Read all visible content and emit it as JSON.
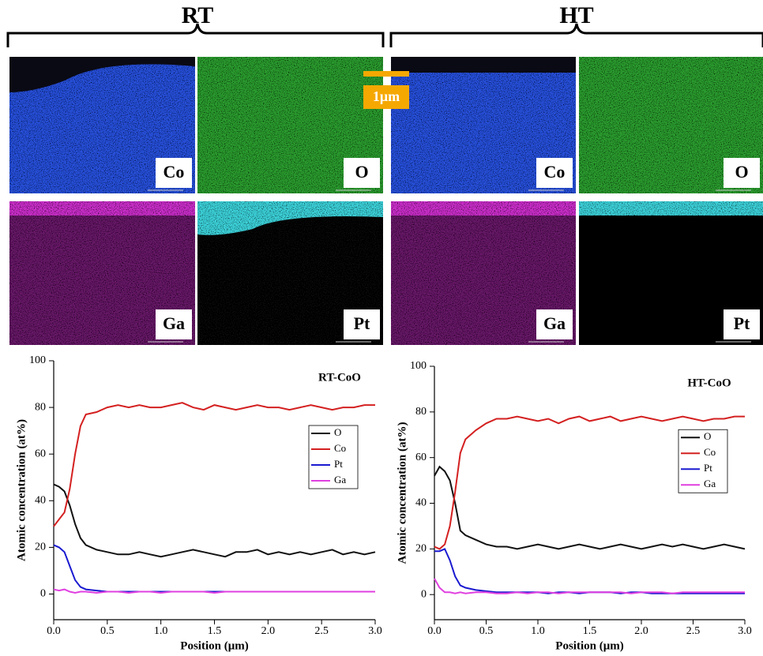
{
  "header": {
    "left": "RT",
    "right": "HT"
  },
  "scale_bar": "1μm",
  "maps": [
    {
      "label": "Co"
    },
    {
      "label": "O"
    },
    {
      "label": "Ga"
    },
    {
      "label": "Pt"
    },
    {
      "label": "Co"
    },
    {
      "label": "O"
    },
    {
      "label": "Ga"
    },
    {
      "label": "Pt"
    }
  ],
  "chart_data": [
    {
      "type": "line",
      "title": "RT-CoO",
      "xlabel": "Position (μm)",
      "ylabel": "Atomic concentration (at%)",
      "x": [
        0,
        0.05,
        0.1,
        0.15,
        0.2,
        0.25,
        0.3,
        0.4,
        0.5,
        0.6,
        0.7,
        0.8,
        0.9,
        1.0,
        1.1,
        1.2,
        1.3,
        1.4,
        1.5,
        1.6,
        1.7,
        1.8,
        1.9,
        2.0,
        2.1,
        2.2,
        2.3,
        2.4,
        2.5,
        2.6,
        2.7,
        2.8,
        2.9,
        3.0
      ],
      "series": [
        {
          "name": "O",
          "color": "#111111",
          "values": [
            47,
            46,
            44,
            38,
            30,
            24,
            21,
            19,
            18,
            17,
            17,
            18,
            17,
            16,
            17,
            18,
            19,
            18,
            17,
            16,
            18,
            18,
            19,
            17,
            18,
            17,
            18,
            17,
            18,
            19,
            17,
            18,
            17,
            18
          ]
        },
        {
          "name": "Co",
          "color": "#d42020",
          "values": [
            29,
            32,
            35,
            45,
            60,
            72,
            77,
            78,
            80,
            81,
            80,
            81,
            80,
            80,
            81,
            82,
            80,
            79,
            81,
            80,
            79,
            80,
            81,
            80,
            80,
            79,
            80,
            81,
            80,
            79,
            80,
            80,
            81,
            81
          ]
        },
        {
          "name": "Pt",
          "color": "#1a1ad0",
          "values": [
            21,
            20,
            18,
            12,
            6,
            3,
            2,
            1.5,
            1,
            1,
            1,
            1,
            1,
            1,
            1,
            1,
            1,
            1,
            1,
            1,
            1,
            1,
            1,
            1,
            1,
            1,
            1,
            1,
            1,
            1,
            1,
            1,
            1,
            1
          ]
        },
        {
          "name": "Ga",
          "color": "#e040e0",
          "values": [
            2,
            1.5,
            2,
            1,
            0.5,
            1,
            1,
            0.5,
            1,
            1,
            0.5,
            1,
            1,
            0.5,
            1,
            1,
            1,
            1,
            0.5,
            1,
            1,
            1,
            1,
            1,
            1,
            1,
            1,
            1,
            1,
            1,
            1,
            1,
            1,
            1
          ]
        }
      ],
      "xlim": [
        0,
        3
      ],
      "ylim": [
        -11,
        100
      ],
      "xticks": [
        {
          "value": 0,
          "label": "0.0"
        },
        0.5,
        {
          "value": 1,
          "label": "1.0"
        },
        1.5,
        {
          "value": 2,
          "label": "2.0"
        },
        2.5,
        {
          "value": 3,
          "label": "3.0"
        }
      ],
      "yticks": [
        0,
        20,
        40,
        60,
        80,
        100
      ],
      "legend": "center right"
    },
    {
      "type": "line",
      "title": "HT-CoO",
      "xlabel": "Position (μm)",
      "ylabel": "Atomic concentration (at%)",
      "x": [
        0,
        0.05,
        0.1,
        0.15,
        0.2,
        0.25,
        0.3,
        0.4,
        0.5,
        0.6,
        0.7,
        0.8,
        0.9,
        1.0,
        1.1,
        1.2,
        1.3,
        1.4,
        1.5,
        1.6,
        1.7,
        1.8,
        1.9,
        2.0,
        2.1,
        2.2,
        2.3,
        2.4,
        2.5,
        2.6,
        2.7,
        2.8,
        2.9,
        3.0
      ],
      "series": [
        {
          "name": "O",
          "color": "#111111",
          "values": [
            52,
            56,
            54,
            50,
            40,
            28,
            26,
            24,
            22,
            21,
            21,
            20,
            21,
            22,
            21,
            20,
            21,
            22,
            21,
            20,
            21,
            22,
            21,
            20,
            21,
            22,
            21,
            22,
            21,
            20,
            21,
            22,
            21,
            20
          ]
        },
        {
          "name": "Co",
          "color": "#d42020",
          "values": [
            21,
            20,
            22,
            30,
            45,
            62,
            68,
            72,
            75,
            77,
            77,
            78,
            77,
            76,
            77,
            75,
            77,
            78,
            76,
            77,
            78,
            76,
            77,
            78,
            77,
            76,
            77,
            78,
            77,
            76,
            77,
            77,
            78,
            78
          ]
        },
        {
          "name": "Pt",
          "color": "#1a1ad0",
          "values": [
            19,
            19,
            20,
            15,
            8,
            4,
            3,
            2,
            1.5,
            1,
            1,
            1,
            1,
            1,
            0.5,
            1,
            1,
            0.5,
            1,
            1,
            1,
            0.5,
            1,
            1,
            0.5,
            0.5,
            0.5,
            0.5,
            0.5,
            0.5,
            0.5,
            0.5,
            0.5,
            0.5
          ]
        },
        {
          "name": "Ga",
          "color": "#e040e0",
          "values": [
            7,
            3,
            1,
            1,
            0.5,
            1,
            0.5,
            1,
            1,
            0.5,
            0.5,
            1,
            0.5,
            1,
            1,
            0.5,
            1,
            1,
            1,
            1,
            1,
            1,
            0.5,
            1,
            1,
            1,
            0.5,
            1,
            1,
            1,
            1,
            1,
            1,
            1
          ]
        }
      ],
      "xlim": [
        0,
        3
      ],
      "ylim": [
        -11,
        100
      ],
      "xticks": [
        {
          "value": 0,
          "label": "0.0"
        },
        0.5,
        {
          "value": 1,
          "label": "1.0"
        },
        1.5,
        {
          "value": 2,
          "label": "2.0"
        },
        2.5,
        {
          "value": 3,
          "label": "3.0"
        }
      ],
      "yticks": [
        0,
        20,
        40,
        60,
        80,
        100
      ],
      "legend": "center right"
    }
  ]
}
